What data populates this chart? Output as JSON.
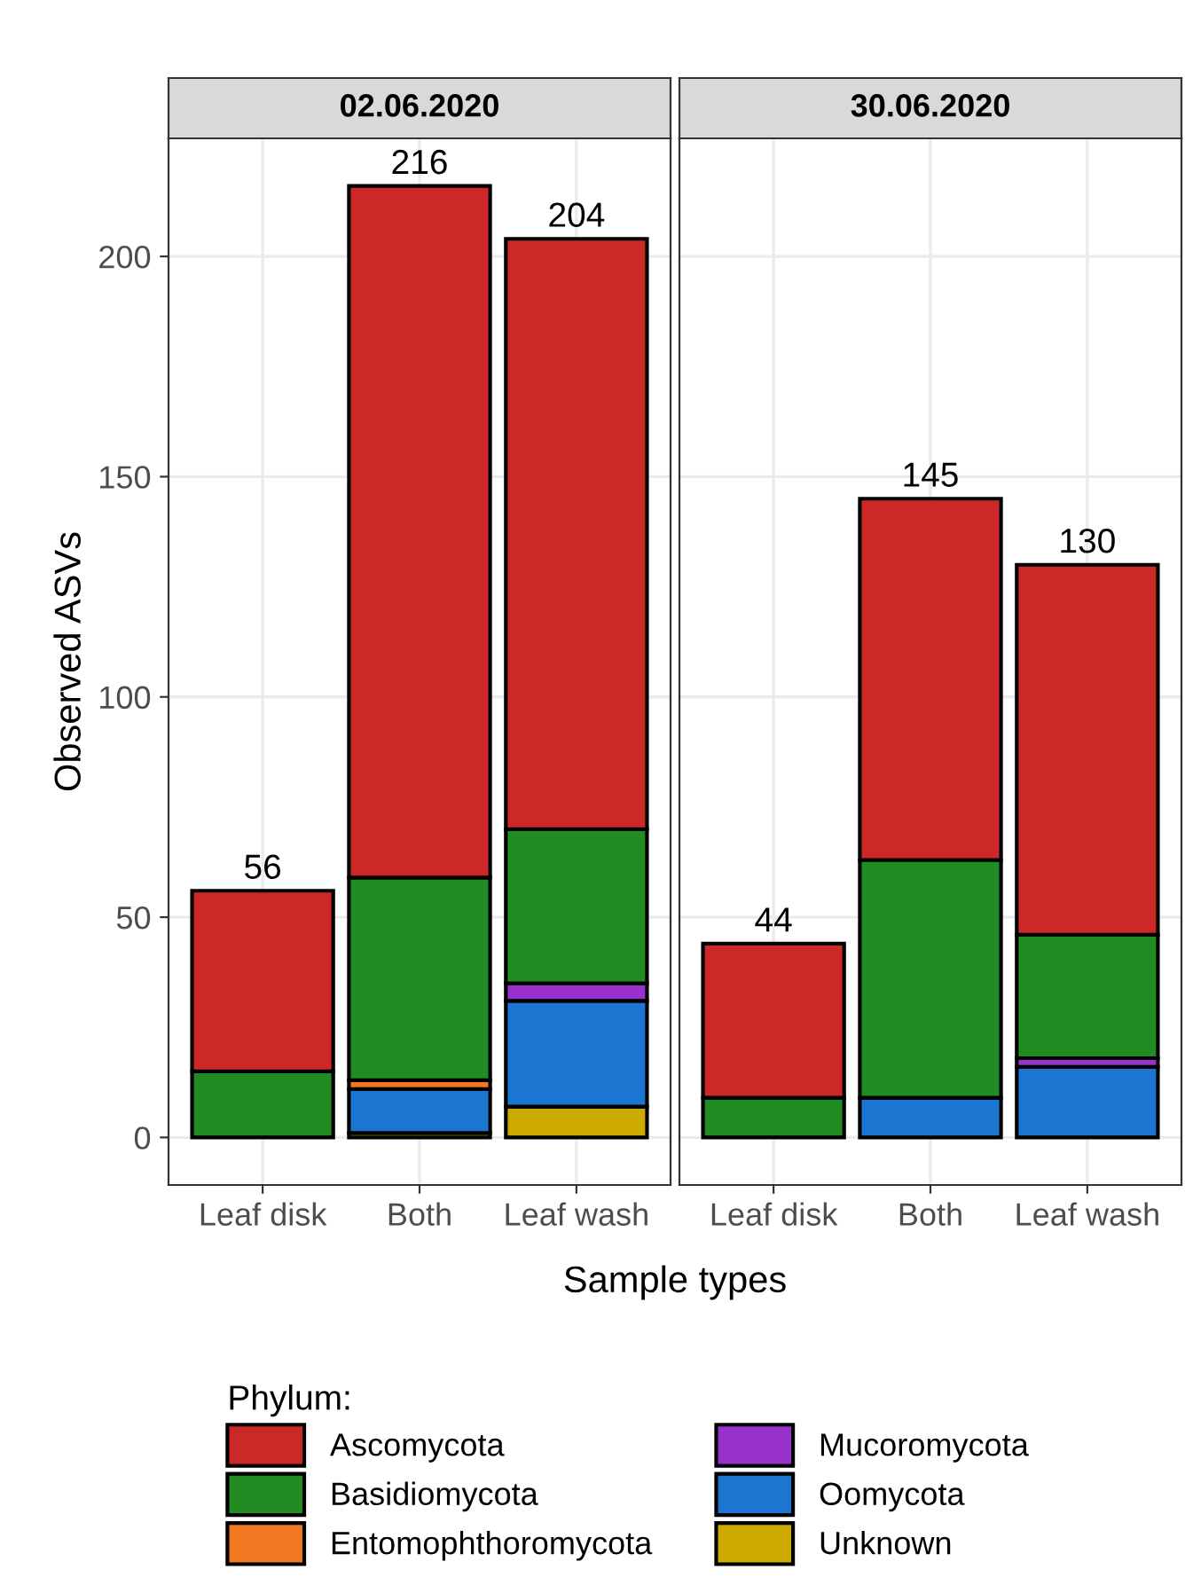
{
  "chart_data": [
    {
      "type": "bar",
      "stacked": true,
      "title": "02.06.2020",
      "xlabel": "Sample types",
      "ylabel": "Observed ASVs",
      "legend_title": "Phylum:",
      "legend": "bottom",
      "grid": true,
      "categories": [
        "Leaf disk",
        "Both",
        "Leaf wash"
      ],
      "ylim": [
        -10.8,
        226.8
      ],
      "yticks": [
        0,
        50,
        100,
        150,
        200
      ],
      "totals": [
        "56",
        "216",
        "204"
      ],
      "series": [
        {
          "name": "Unknown",
          "color": "#cdaa00",
          "values": [
            0,
            1,
            7
          ]
        },
        {
          "name": "Oomycota",
          "color": "#1c75d0",
          "values": [
            0,
            10,
            24
          ]
        },
        {
          "name": "Mucoromycota",
          "color": "#9932cc",
          "values": [
            0,
            0,
            4
          ]
        },
        {
          "name": "Entomophthoromycota",
          "color": "#f07820",
          "values": [
            0,
            2,
            0
          ]
        },
        {
          "name": "Basidiomycota",
          "color": "#228b22",
          "values": [
            15,
            46,
            35
          ]
        },
        {
          "name": "Ascomycota",
          "color": "#cc2828",
          "values": [
            41,
            157,
            134
          ]
        }
      ]
    },
    {
      "type": "bar",
      "stacked": true,
      "title": "30.06.2020",
      "grid": true,
      "tick_labels": "x",
      "categories": [
        "Leaf disk",
        "Both",
        "Leaf wash"
      ],
      "ylim": [
        -10.8,
        226.8
      ],
      "yticks": [
        0,
        50,
        100,
        150,
        200
      ],
      "totals": [
        "44",
        "145",
        "130"
      ],
      "series": [
        {
          "color": "#cdaa00",
          "values": [
            0,
            0,
            0
          ]
        },
        {
          "color": "#1c75d0",
          "values": [
            0,
            9,
            16
          ]
        },
        {
          "color": "#9932cc",
          "values": [
            0,
            0,
            2
          ]
        },
        {
          "color": "#f07820",
          "values": [
            0,
            0,
            0
          ]
        },
        {
          "color": "#228b22",
          "values": [
            9,
            54,
            28
          ]
        },
        {
          "color": "#cc2828",
          "values": [
            35,
            82,
            84
          ]
        }
      ]
    }
  ]
}
